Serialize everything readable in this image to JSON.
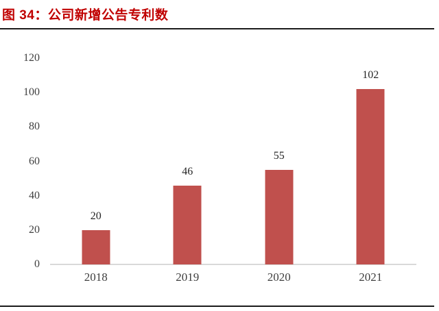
{
  "figure": {
    "title": "图 34：公司新增公告专利数"
  },
  "chart_data": {
    "type": "bar",
    "title": "图 34：公司新增公告专利数",
    "categories": [
      "2018",
      "2019",
      "2020",
      "2021"
    ],
    "values": [
      20,
      46,
      55,
      102
    ],
    "data_labels": [
      "20",
      "46",
      "55",
      "102"
    ],
    "xlabel": "",
    "ylabel": "",
    "ylim": [
      0,
      120
    ],
    "yticks": [
      0,
      20,
      40,
      60,
      80,
      100,
      120
    ],
    "grid": false,
    "legend_position": "none"
  },
  "colors": {
    "bar": "#C0504D",
    "title": "#C00000",
    "separator": "#1A1A1A",
    "axis_line": "#D9D9D9",
    "tick_label": "#404040",
    "data_label": "#262626"
  }
}
